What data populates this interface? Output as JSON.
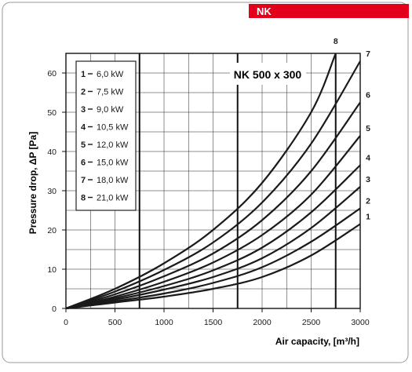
{
  "header_tag": {
    "label": "NK",
    "color": "#e2001a"
  },
  "chart_data": {
    "type": "line",
    "title": "NK 500 x 300",
    "xlabel": "Air capacity, [m³/h]",
    "ylabel": "Pressure drop, ΔP [Pa]",
    "xlim": [
      0,
      3000
    ],
    "ylim": [
      0,
      65
    ],
    "xticks": [
      0,
      500,
      1000,
      1500,
      2000,
      2500,
      3000
    ],
    "yticks": [
      0,
      10,
      20,
      30,
      40,
      50,
      60
    ],
    "grid": true,
    "legend_position": "top-left",
    "highlight_x": [
      750,
      1750,
      2750
    ],
    "series": [
      {
        "name": "1 - 6,0 kW",
        "label": "1",
        "x": [
          0,
          500,
          1000,
          1500,
          2000,
          2500,
          3000
        ],
        "y": [
          0,
          1.5,
          3.0,
          5.0,
          8.0,
          13.5,
          21.5
        ]
      },
      {
        "name": "2 - 7,5 kW",
        "label": "2",
        "x": [
          0,
          500,
          1000,
          1500,
          2000,
          2500,
          3000
        ],
        "y": [
          0,
          1.8,
          3.8,
          6.5,
          10.5,
          17.0,
          25.5
        ]
      },
      {
        "name": "3 - 9,0 kW",
        "label": "3",
        "x": [
          0,
          500,
          1000,
          1500,
          2000,
          2500,
          3000
        ],
        "y": [
          0,
          2.2,
          4.8,
          8.0,
          12.8,
          20.5,
          31.0
        ]
      },
      {
        "name": "4 - 10,5 kW",
        "label": "4",
        "x": [
          0,
          500,
          1000,
          1500,
          2000,
          2500,
          3000
        ],
        "y": [
          0,
          2.6,
          5.7,
          9.7,
          15.5,
          24.5,
          36.5
        ]
      },
      {
        "name": "5 - 12,0 kW",
        "label": "5",
        "x": [
          0,
          500,
          1000,
          1500,
          2000,
          2500,
          3000
        ],
        "y": [
          0,
          3.0,
          6.8,
          11.7,
          18.7,
          29.0,
          44.0
        ]
      },
      {
        "name": "6 - 15,0 kW",
        "label": "6",
        "x": [
          0,
          500,
          1000,
          1500,
          2000,
          2500,
          3000
        ],
        "y": [
          0,
          3.6,
          8.2,
          14.0,
          22.5,
          35.0,
          52.5
        ]
      },
      {
        "name": "7 - 18,0 kW",
        "label": "7",
        "x": [
          0,
          500,
          1000,
          1500,
          2000,
          2500,
          3000
        ],
        "y": [
          0,
          4.3,
          9.8,
          16.8,
          27.0,
          42.0,
          63.0
        ]
      },
      {
        "name": "8 - 21,0 kW",
        "label": "8",
        "x": [
          0,
          500,
          1000,
          1500,
          2000,
          2500,
          2750
        ],
        "y": [
          0,
          5.0,
          11.5,
          20.0,
          32.0,
          50.0,
          65.0
        ]
      }
    ],
    "legend_entries": [
      {
        "num": "1",
        "val": "6,0 kW"
      },
      {
        "num": "2",
        "val": "7,5 kW"
      },
      {
        "num": "3",
        "val": "9,0 kW"
      },
      {
        "num": "4",
        "val": "10,5 kW"
      },
      {
        "num": "5",
        "val": "12,0 kW"
      },
      {
        "num": "6",
        "val": "15,0 kW"
      },
      {
        "num": "7",
        "val": "18,0 kW"
      },
      {
        "num": "8",
        "val": "21,0 kW"
      }
    ],
    "line_color": "#1a1a1a",
    "grid_color": "#222222",
    "border_color": "#9a9a9a"
  }
}
